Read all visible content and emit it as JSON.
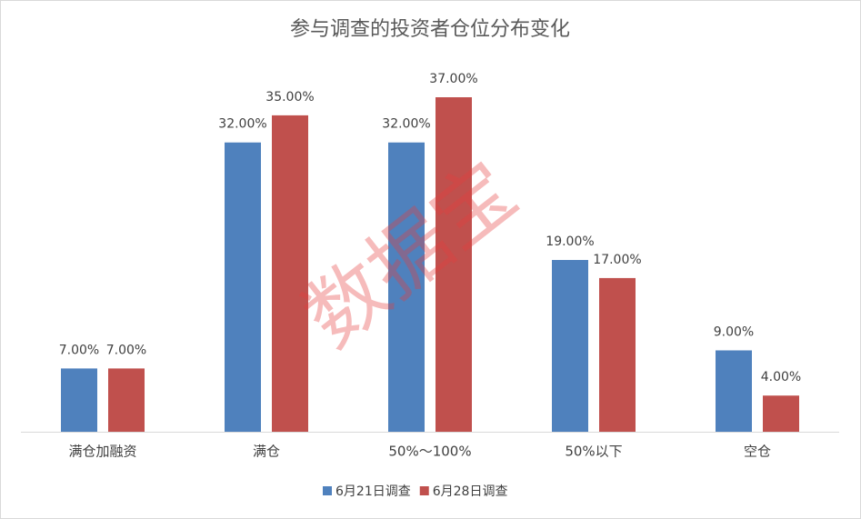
{
  "chart_data": {
    "type": "bar",
    "title": "参与调查的投资者仓位分布变化",
    "categories": [
      "满仓加融资",
      "满仓",
      "50%～100%",
      "50%以下",
      "空仓"
    ],
    "series": [
      {
        "name": "6月21日调查",
        "color": "#4f81bd",
        "values": [
          7,
          32,
          32,
          19,
          9
        ],
        "value_labels": [
          "7.00%",
          "32.00%",
          "32.00%",
          "19.00%",
          "9.00%"
        ]
      },
      {
        "name": "6月28日调查",
        "color": "#c0504d",
        "values": [
          7,
          35,
          37,
          17,
          4
        ],
        "value_labels": [
          "7.00%",
          "35.00%",
          "37.00%",
          "17.00%",
          "4.00%"
        ]
      }
    ],
    "watermark": "数据宝"
  }
}
